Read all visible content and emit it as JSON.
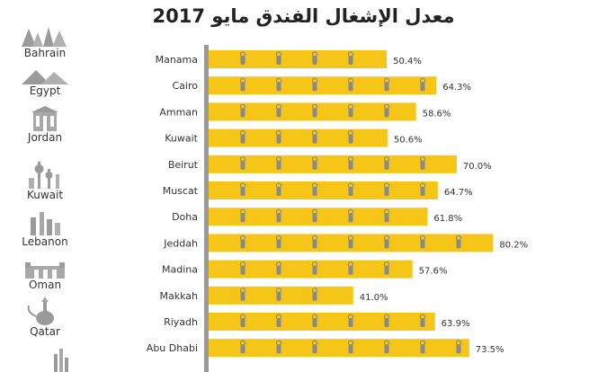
{
  "title": "معدل الإشغال الفندق مايو 2017",
  "countries": [
    "Bahrain",
    "Egypt",
    "Jordan",
    "Kuwait",
    "Lebanon",
    "Oman",
    "Qatar"
  ],
  "colors": {
    "bar": "#f5c518",
    "axis": "#999999",
    "icon": "#9a9a9a",
    "bar_icon": "#8a8a8a",
    "text": "#333333"
  },
  "chart_data": {
    "type": "bar",
    "orientation": "horizontal",
    "title": "معدل الإشغال الفندق مايو 2017",
    "categories": [
      "Manama",
      "Cairo",
      "Amman",
      "Kuwait",
      "Beirut",
      "Muscat",
      "Doha",
      "Jeddah",
      "Madina",
      "Makkah",
      "Riyadh",
      "Abu Dhabi"
    ],
    "values": [
      50.4,
      64.3,
      58.6,
      50.6,
      70.0,
      64.7,
      61.8,
      80.2,
      57.6,
      41.0,
      63.9,
      73.5
    ],
    "data_labels": [
      "50.4%",
      "64.3%",
      "58.6%",
      "50.6%",
      "70.0%",
      "64.7%",
      "61.8%",
      "80.2%",
      "57.6%",
      "41.0%",
      "63.9%",
      "73.5%"
    ],
    "bar_icon": "door-hanger-icon",
    "grid": false,
    "legend": "none"
  }
}
